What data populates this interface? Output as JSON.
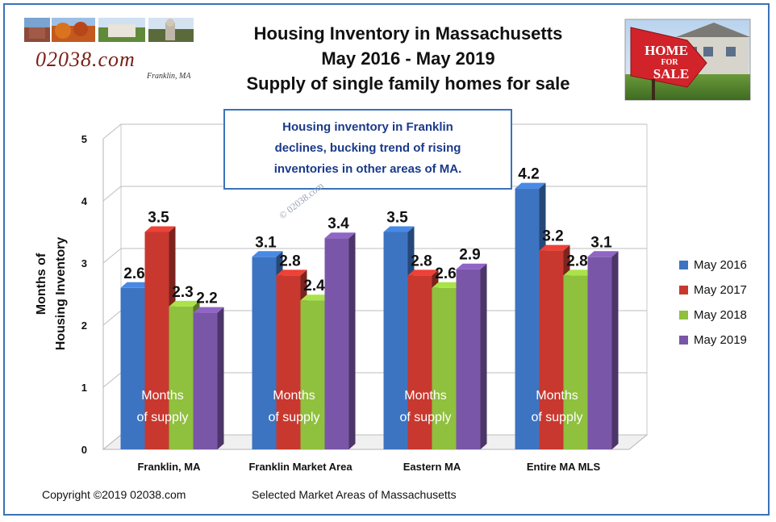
{
  "header": {
    "title_line1": "Housing Inventory in Massachusetts",
    "title_line2": "May 2016 - May 2019",
    "title_line3": "Supply of single family homes for sale"
  },
  "logo": {
    "text": "02038.com",
    "subtext": "Franklin, MA"
  },
  "sign": {
    "line1": "HOME",
    "line2": "FOR",
    "line3": "SALE"
  },
  "callout": {
    "line1": "Housing inventory in Franklin",
    "line2": "declines, bucking trend of rising",
    "line3": "inventories in other areas of MA."
  },
  "watermark": "© 02038.com",
  "bar_inner_label": {
    "line1": "Months",
    "line2": "of supply"
  },
  "footer": {
    "copyright": "Copyright ©2019 02038.com",
    "caption": "Selected Market Areas of Massachusetts"
  },
  "chart_data": {
    "type": "bar",
    "title": "Housing Inventory in Massachusetts",
    "ylabel_line1": "Months of",
    "ylabel_line2": "Housing Inventory",
    "xlabel": "Selected Market Areas of Massachusetts",
    "ylim": [
      0,
      5
    ],
    "yticks": [
      "0",
      "1",
      "2",
      "3",
      "4",
      "5"
    ],
    "categories": [
      "Franklin, MA",
      "Franklin Market Area",
      "Eastern MA",
      "Entire MA MLS"
    ],
    "series": [
      {
        "name": "May 2016",
        "values": [
          2.6,
          3.1,
          3.5,
          4.2
        ],
        "color": "#3c74c2"
      },
      {
        "name": "May 2017",
        "values": [
          3.5,
          2.8,
          2.8,
          3.2
        ],
        "color": "#c8382f"
      },
      {
        "name": "May 2018",
        "values": [
          2.3,
          2.4,
          2.6,
          2.8
        ],
        "color": "#8fc03e"
      },
      {
        "name": "May 2019",
        "values": [
          2.2,
          3.4,
          2.9,
          3.1
        ],
        "color": "#7a56a8"
      }
    ],
    "legend_position": "right",
    "grid": true
  }
}
